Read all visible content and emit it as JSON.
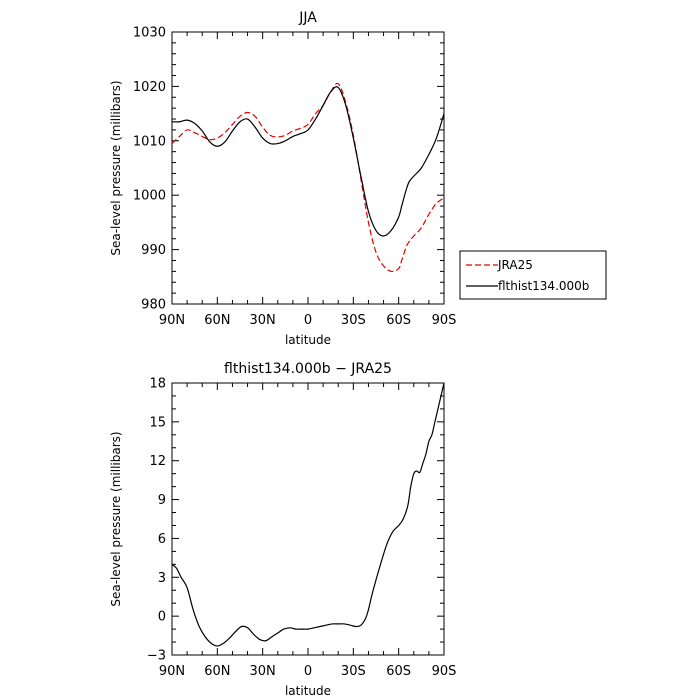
{
  "chart_data": [
    {
      "type": "line",
      "title": "JJA",
      "xlabel": "latitude",
      "ylabel": "Sea-level pressure (millibars)",
      "xlim": [
        90,
        -90
      ],
      "ylim": [
        980,
        1030
      ],
      "x_tick_values": [
        90,
        60,
        30,
        0,
        -30,
        -60,
        -90
      ],
      "x_tick_labels": [
        "90N",
        "60N",
        "30N",
        "0",
        "30S",
        "60S",
        "90S"
      ],
      "y_tick_values": [
        980,
        990,
        1000,
        1010,
        1020,
        1030
      ],
      "y_tick_labels": [
        "980",
        "990",
        "1000",
        "1010",
        "1020",
        "1030"
      ],
      "legend_position": "right",
      "series": [
        {
          "name": "JRA25",
          "color": "#e00000",
          "dash": "dashed",
          "x": [
            90,
            85,
            80,
            75,
            70,
            65,
            60,
            55,
            50,
            45,
            40,
            35,
            30,
            25,
            20,
            15,
            10,
            5,
            0,
            -5,
            -10,
            -15,
            -20,
            -25,
            -30,
            -35,
            -40,
            -45,
            -50,
            -55,
            -60,
            -62,
            -65,
            -67,
            -70,
            -75,
            -80,
            -85,
            -90
          ],
          "y": [
            1009.5,
            1010.8,
            1012,
            1011.5,
            1010.8,
            1010.2,
            1010.5,
            1011.5,
            1013,
            1014.5,
            1015.2,
            1014.5,
            1012.5,
            1011,
            1010.7,
            1011,
            1011.8,
            1012.3,
            1013,
            1015,
            1016.5,
            1019,
            1020.5,
            1017,
            1011,
            1003,
            995,
            989.5,
            987,
            986,
            986.5,
            988,
            990.5,
            991.5,
            992.5,
            994,
            996.5,
            998.5,
            999.5
          ]
        },
        {
          "name": "flthist134.000b",
          "color": "#000000",
          "dash": "solid",
          "x": [
            90,
            85,
            80,
            75,
            70,
            65,
            60,
            55,
            50,
            45,
            40,
            35,
            30,
            25,
            20,
            15,
            10,
            5,
            0,
            -5,
            -10,
            -15,
            -20,
            -25,
            -30,
            -35,
            -40,
            -45,
            -50,
            -55,
            -60,
            -62,
            -65,
            -67,
            -70,
            -75,
            -80,
            -85,
            -90
          ],
          "y": [
            1013.5,
            1013.5,
            1013.8,
            1013.2,
            1011.8,
            1009.8,
            1009,
            1009.8,
            1011.8,
            1013.5,
            1014,
            1012.5,
            1010.5,
            1009.5,
            1009.5,
            1010,
            1010.8,
            1011.3,
            1012,
            1014,
            1016.5,
            1019,
            1019.8,
            1016.5,
            1010.5,
            1003.5,
            997,
            993.5,
            992.5,
            993.5,
            996,
            998,
            1001,
            1002.5,
            1003.5,
            1005,
            1007.5,
            1010.5,
            1015
          ]
        }
      ]
    },
    {
      "type": "line",
      "title": "flthist134.000b − JRA25",
      "xlabel": "latitude",
      "ylabel": "Sea-level pressure (millibars)",
      "xlim": [
        90,
        -90
      ],
      "ylim": [
        -3,
        18
      ],
      "x_tick_values": [
        90,
        60,
        30,
        0,
        -30,
        -60,
        -90
      ],
      "x_tick_labels": [
        "90N",
        "60N",
        "30N",
        "0",
        "30S",
        "60S",
        "90S"
      ],
      "y_tick_values": [
        -3,
        0,
        3,
        6,
        9,
        12,
        15,
        18
      ],
      "y_tick_labels": [
        "−3",
        "0",
        "3",
        "6",
        "9",
        "12",
        "15",
        "18"
      ],
      "series": [
        {
          "name": "",
          "color": "#000000",
          "dash": "solid",
          "x": [
            90,
            87,
            84,
            80,
            76,
            72,
            68,
            64,
            60,
            56,
            52,
            48,
            44,
            40,
            36,
            32,
            28,
            24,
            20,
            16,
            12,
            8,
            4,
            0,
            -4,
            -8,
            -12,
            -16,
            -20,
            -24,
            -28,
            -32,
            -35,
            -38,
            -40,
            -42,
            -45,
            -48,
            -52,
            -56,
            -60,
            -63,
            -66,
            -68,
            -70,
            -72,
            -74,
            -76,
            -78,
            -80,
            -82,
            -84,
            -86,
            -88,
            -90
          ],
          "y": [
            4,
            3.7,
            3,
            2.2,
            0.5,
            -0.8,
            -1.6,
            -2.1,
            -2.3,
            -2.1,
            -1.7,
            -1.2,
            -0.8,
            -0.9,
            -1.4,
            -1.8,
            -1.9,
            -1.6,
            -1.3,
            -1,
            -0.9,
            -1,
            -1,
            -1,
            -0.9,
            -0.8,
            -0.7,
            -0.6,
            -0.6,
            -0.6,
            -0.7,
            -0.8,
            -0.7,
            -0.2,
            0.5,
            1.5,
            2.8,
            4,
            5.5,
            6.5,
            7,
            7.5,
            8.5,
            10,
            11,
            11.2,
            11.1,
            11.8,
            12.5,
            13.5,
            14,
            15,
            16,
            17,
            18
          ]
        }
      ]
    }
  ]
}
